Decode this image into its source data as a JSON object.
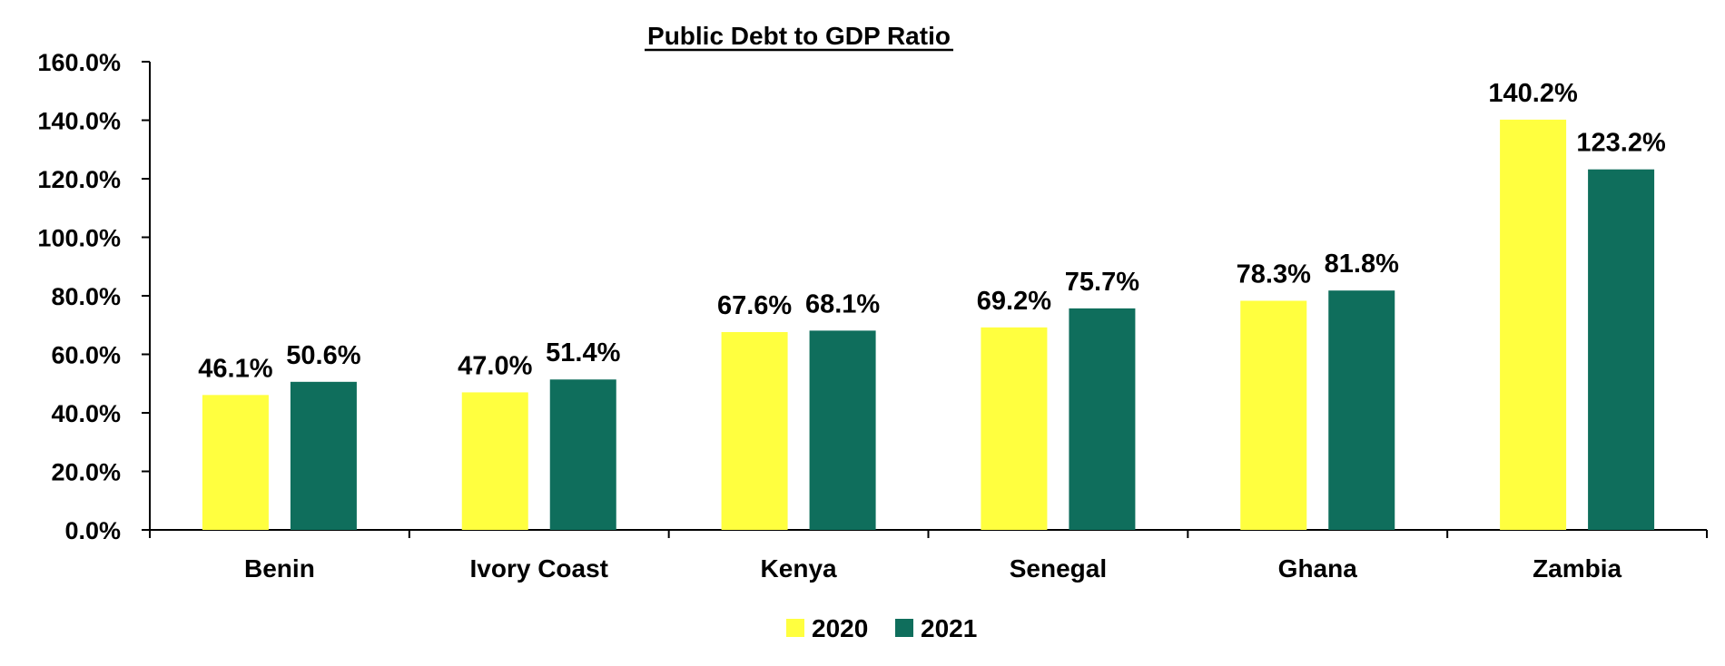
{
  "chart_data": {
    "type": "bar",
    "title": "Public Debt to GDP Ratio",
    "xlabel": "",
    "ylabel": "",
    "categories": [
      "Benin",
      "Ivory Coast",
      "Kenya",
      "Senegal",
      "Ghana",
      "Zambia"
    ],
    "series": [
      {
        "name": "2020",
        "color": "#ffff3f",
        "values": [
          46.1,
          47.0,
          67.6,
          69.2,
          78.3,
          140.2
        ]
      },
      {
        "name": "2021",
        "color": "#0f6e5c",
        "values": [
          50.6,
          51.4,
          68.1,
          75.7,
          81.8,
          123.2
        ]
      }
    ],
    "ylim": [
      0,
      160
    ],
    "yticks": [
      0,
      20,
      40,
      60,
      80,
      100,
      120,
      140,
      160
    ],
    "value_format": "percent_1dp",
    "grid": false,
    "legend_position": "bottom"
  }
}
